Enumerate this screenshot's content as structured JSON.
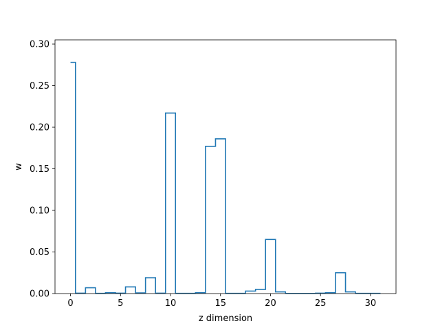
{
  "chart_data": {
    "type": "step",
    "title": "",
    "xlabel": "z dimension",
    "ylabel": "w",
    "xlim": [
      -1.55,
      32.55
    ],
    "ylim": [
      0,
      0.305
    ],
    "grid": false,
    "xticks": [
      0,
      5,
      10,
      15,
      20,
      25,
      30
    ],
    "xtick_labels": [
      "0",
      "5",
      "10",
      "15",
      "20",
      "25",
      "30"
    ],
    "yticks": [
      0.0,
      0.05,
      0.1,
      0.15,
      0.2,
      0.25,
      0.3
    ],
    "ytick_labels": [
      "0.00",
      "0.05",
      "0.10",
      "0.15",
      "0.20",
      "0.25",
      "0.30"
    ],
    "step_where": "mid",
    "line_color": "#1f77b4",
    "series": [
      {
        "x": [
          0,
          1,
          2,
          3,
          4,
          5,
          6,
          7,
          8,
          9,
          10,
          11,
          12,
          13,
          14,
          15,
          16,
          17,
          18,
          19,
          20,
          21,
          22,
          23,
          24,
          25,
          26,
          27,
          28,
          29,
          30,
          31
        ],
        "values": [
          0.278,
          0.0005,
          0.007,
          0.0003,
          0.001,
          0.0005,
          0.008,
          0.0008,
          0.019,
          0.0005,
          0.217,
          0.0003,
          0.0003,
          0.001,
          0.177,
          0.186,
          0.0003,
          0.0003,
          0.003,
          0.005,
          0.065,
          0.002,
          0.0002,
          0.0002,
          0.0002,
          0.0005,
          0.001,
          0.025,
          0.002,
          0.0003,
          0.0003,
          0.0003
        ]
      }
    ]
  }
}
